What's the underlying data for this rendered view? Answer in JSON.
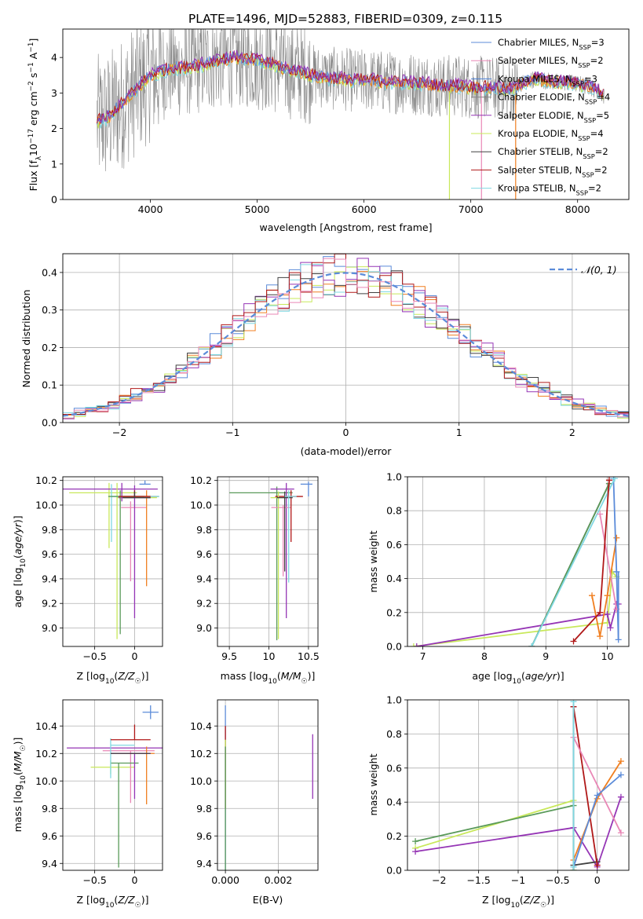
{
  "figure": {
    "title": "PLATE=1496, MJD=52883, FIBERID=0309, z=0.115"
  },
  "colors": {
    "chabrier_miles": "#5b8bd9",
    "salpeter_miles": "#e987b6",
    "kroupa_miles": "#4a7fd4",
    "chabrier_elodie": "#888888",
    "salpeter_elodie": "#9535b5",
    "kroupa_elodie": "#c8e85a",
    "chabrier_stelib": "#404040",
    "salpeter_stelib": "#b01818",
    "kroupa_stelib": "#7fd8e2",
    "orange": "#f07f20",
    "green": "#5a9a5a",
    "gauss": "#5b8bd9",
    "grid": "#b0b0b0"
  },
  "chart_data": [
    {
      "id": "spectrum",
      "type": "line",
      "title": "PLATE=1496, MJD=52883, FIBERID=0309, z=0.115",
      "xlabel": "wavelength [Angstrom, rest frame]",
      "ylabel": "Flux [f_λ 10^-17 erg cm^-2 s^-1 A^-1]",
      "xlim": [
        3180,
        8480
      ],
      "ylim": [
        0,
        4.8
      ],
      "xticks": [
        4000,
        5000,
        6000,
        7000,
        8000
      ],
      "yticks": [
        0,
        1,
        2,
        3,
        4
      ],
      "grid": false,
      "legend_position": "top-right",
      "legend": [
        {
          "label": "Chabrier MILES, N",
          "sub": "SSP",
          "suffix": "=3",
          "color": "#5b8bd9"
        },
        {
          "label": "Salpeter MILES, N",
          "sub": "SSP",
          "suffix": "=2",
          "color": "#e987b6"
        },
        {
          "label": "Kroupa MILES, N",
          "sub": "SSP",
          "suffix": "=3",
          "color": "#4a7fd4"
        },
        {
          "label": "Chabrier ELODIE, N",
          "sub": "SSP",
          "suffix": "=4",
          "color": "#888888"
        },
        {
          "label": "Salpeter ELODIE, N",
          "sub": "SSP",
          "suffix": "=5",
          "color": "#9535b5"
        },
        {
          "label": "Kroupa ELODIE, N",
          "sub": "SSP",
          "suffix": "=4",
          "color": "#c8e85a"
        },
        {
          "label": "Chabrier STELIB, N",
          "sub": "SSP",
          "suffix": "=2",
          "color": "#404040"
        },
        {
          "label": "Salpeter STELIB, N",
          "sub": "SSP",
          "suffix": "=2",
          "color": "#b01818"
        },
        {
          "label": "Kroupa STELIB, N",
          "sub": "SSP",
          "suffix": "=2",
          "color": "#7fd8e2"
        }
      ],
      "continuum_x": [
        3500,
        3600,
        3700,
        3800,
        3900,
        4000,
        4100,
        4200,
        4300,
        4400,
        4500,
        4600,
        4700,
        4800,
        4900,
        5000,
        5100,
        5200,
        5300,
        5400,
        5500,
        5600,
        5700,
        5800,
        5900,
        6000,
        6100,
        6200,
        6300,
        6400,
        6500,
        6600,
        6700,
        6800,
        6900,
        7000,
        7100,
        7200,
        7300,
        7400,
        7500,
        7600,
        7700,
        7800,
        7900,
        8000,
        8100,
        8200,
        8250
      ],
      "continuum_y": [
        2.2,
        2.3,
        2.6,
        2.9,
        3.2,
        3.5,
        3.6,
        3.7,
        3.7,
        3.75,
        3.8,
        3.9,
        3.95,
        4.0,
        3.95,
        3.9,
        3.85,
        3.75,
        3.65,
        3.6,
        3.5,
        3.45,
        3.4,
        3.4,
        3.35,
        3.35,
        3.35,
        3.3,
        3.3,
        3.3,
        3.25,
        3.25,
        3.2,
        3.2,
        3.2,
        3.15,
        3.15,
        3.15,
        3.1,
        3.1,
        3.3,
        3.4,
        3.35,
        3.3,
        3.3,
        3.25,
        3.2,
        3.05,
        2.9
      ]
    },
    {
      "id": "residuals",
      "type": "histogram",
      "xlabel": "(data-model)/error",
      "ylabel": "Normed distribution",
      "xlim": [
        -2.5,
        2.5
      ],
      "ylim": [
        0,
        0.45
      ],
      "xticks": [
        -2,
        -1,
        0,
        1,
        2
      ],
      "yticks": [
        0.0,
        0.1,
        0.2,
        0.3,
        0.4
      ],
      "grid": true,
      "legend_position": "top-right",
      "legend": [
        {
          "label": "𝒩(0, 1)",
          "color": "#5b8bd9",
          "style": "dashed"
        }
      ],
      "bin_width": 0.1
    },
    {
      "id": "age-vs-Z",
      "type": "errorbar",
      "xlabel": "Z [log10(Z/Z☉)]",
      "ylabel": "age  [log10(age/yr)]",
      "xlim": [
        -0.9,
        0.35
      ],
      "ylim": [
        8.85,
        10.23
      ],
      "xticks": [
        -0.5,
        0.0
      ],
      "yticks": [
        9.0,
        9.2,
        9.4,
        9.6,
        9.8,
        10.0,
        10.2
      ],
      "grid": true,
      "points": [
        {
          "x": 0.13,
          "y": 10.17,
          "xerr": [
            0.07,
            0.07
          ],
          "yerr": [
            0.0,
            0.03
          ],
          "color": "#5b8bd9"
        },
        {
          "x": -0.32,
          "y": 10.1,
          "xerr": [
            0.5,
            0.35
          ],
          "yerr": [
            0.45,
            0.08
          ],
          "color": "#c8e85a"
        },
        {
          "x": -0.16,
          "y": 10.13,
          "xerr": [
            0.75,
            0.45
          ],
          "yerr": [
            0.1,
            0.05
          ],
          "color": "#9535b5"
        },
        {
          "x": -0.05,
          "y": 9.98,
          "xerr": [
            0.12,
            0.2
          ],
          "yerr": [
            0.6,
            0.05
          ],
          "color": "#e987b6"
        },
        {
          "x": 0.15,
          "y": 10.07,
          "xerr": [
            0.3,
            0.15
          ],
          "yerr": [
            0.73,
            0.05
          ],
          "color": "#f07f20"
        },
        {
          "x": -0.22,
          "y": 10.06,
          "xerr": [
            0.0,
            0.5
          ],
          "yerr": [
            1.15,
            0.12
          ],
          "color": "#c8e85a"
        },
        {
          "x": 0.0,
          "y": 10.06,
          "xerr": [
            0.2,
            0.2
          ],
          "yerr": [
            0.98,
            0.1
          ],
          "color": "#9535b5"
        },
        {
          "x": -0.29,
          "y": 10.07,
          "xerr": [
            0.0,
            0.6
          ],
          "yerr": [
            0.37,
            0.1
          ],
          "color": "#7fd8e2"
        },
        {
          "x": -0.18,
          "y": 10.07,
          "xerr": [
            0.15,
            0.3
          ],
          "yerr": [
            1.12,
            0.05
          ],
          "color": "#5a9a5a"
        },
        {
          "x": 0.0,
          "y": 10.07,
          "xerr": [
            0.2,
            0.2
          ],
          "yerr": [
            0.0,
            0.05
          ],
          "color": "#b01818"
        },
        {
          "x": 0.0,
          "y": 10.06,
          "xerr": [
            0.15,
            0.2
          ],
          "yerr": [
            0.0,
            0.05
          ],
          "color": "#404040"
        }
      ]
    },
    {
      "id": "age-vs-mass",
      "type": "errorbar",
      "xlabel": "mass [log10(M/M☉)]",
      "ylabel": "",
      "xlim": [
        9.35,
        10.62
      ],
      "ylim": [
        8.85,
        10.23
      ],
      "xticks": [
        9.5,
        10.0,
        10.5
      ],
      "yticks": [
        9.0,
        9.2,
        9.4,
        9.6,
        9.8,
        10.0,
        10.2
      ],
      "grid": true,
      "points": [
        {
          "x": 10.5,
          "y": 10.17,
          "xerr": [
            0.1,
            0.05
          ],
          "yerr": [
            0.1,
            0.02
          ],
          "color": "#5b8bd9"
        },
        {
          "x": 10.1,
          "y": 10.1,
          "xerr": [
            0.6,
            0.2
          ],
          "yerr": [
            1.2,
            0.05
          ],
          "color": "#5a9a5a"
        },
        {
          "x": 10.22,
          "y": 10.13,
          "xerr": [
            0.2,
            0.1
          ],
          "yerr": [
            1.05,
            0.05
          ],
          "color": "#9535b5"
        },
        {
          "x": 10.18,
          "y": 9.98,
          "xerr": [
            0.15,
            0.1
          ],
          "yerr": [
            0.56,
            0.02
          ],
          "color": "#e987b6"
        },
        {
          "x": 10.28,
          "y": 10.07,
          "xerr": [
            0.2,
            0.15
          ],
          "yerr": [
            0.37,
            0.05
          ],
          "color": "#b01818"
        },
        {
          "x": 10.12,
          "y": 10.06,
          "xerr": [
            0.1,
            0.1
          ],
          "yerr": [
            1.15,
            0.05
          ],
          "color": "#c8e85a"
        },
        {
          "x": 10.2,
          "y": 10.06,
          "xerr": [
            0.1,
            0.1
          ],
          "yerr": [
            0.6,
            0.05
          ],
          "color": "#404040"
        },
        {
          "x": 10.25,
          "y": 10.07,
          "xerr": [
            0.05,
            0.1
          ],
          "yerr": [
            0.7,
            0.05
          ],
          "color": "#7fd8e2"
        }
      ]
    },
    {
      "id": "weight-vs-age",
      "type": "line",
      "xlabel": "age  [log10(age/yr)]",
      "ylabel": "mass weight",
      "xlim": [
        6.75,
        10.35
      ],
      "ylim": [
        0,
        1
      ],
      "xticks": [
        7,
        8,
        9,
        10
      ],
      "yticks": [
        0.0,
        0.2,
        0.4,
        0.6,
        0.8,
        1.0
      ],
      "grid": true,
      "series": [
        {
          "color": "#c8e85a",
          "x": [
            6.85,
            10.0,
            10.08,
            10.15
          ],
          "y": [
            0.0,
            0.14,
            0.44,
            0.41
          ]
        },
        {
          "color": "#9535b5",
          "x": [
            6.9,
            10.0,
            10.05,
            10.15,
            10.18
          ],
          "y": [
            0.0,
            0.19,
            0.11,
            0.25,
            0.25
          ]
        },
        {
          "color": "#f07f20",
          "x": [
            9.75,
            9.88,
            10.0,
            10.15
          ],
          "y": [
            0.3,
            0.06,
            0.3,
            0.64
          ]
        },
        {
          "color": "#5b8bd9",
          "x": [
            10.1,
            10.15,
            10.18
          ],
          "y": [
            0.99,
            0.44,
            0.04
          ]
        },
        {
          "color": "#404040",
          "x": [
            8.77,
            10.03
          ],
          "y": [
            0.0,
            0.96
          ]
        },
        {
          "color": "#5a9a5a",
          "x": [
            8.77,
            10.03
          ],
          "y": [
            0.0,
            0.96
          ]
        },
        {
          "color": "#7fd8e2",
          "x": [
            8.77,
            10.12
          ],
          "y": [
            0.0,
            0.99
          ]
        },
        {
          "color": "#e987b6",
          "x": [
            9.88,
            10.15
          ],
          "y": [
            0.78,
            0.22
          ]
        },
        {
          "color": "#b01818",
          "x": [
            9.45,
            9.88,
            10.03
          ],
          "y": [
            0.03,
            0.2,
            0.98
          ]
        }
      ]
    },
    {
      "id": "mass-vs-Z",
      "type": "errorbar",
      "xlabel": "Z [log10(Z/Z☉)]",
      "ylabel": "mass [log10(M/M☉)]",
      "xlim": [
        -0.9,
        0.35
      ],
      "ylim": [
        9.35,
        10.59
      ],
      "xticks": [
        -0.5,
        0.0
      ],
      "yticks": [
        9.4,
        9.6,
        9.8,
        10.0,
        10.2,
        10.4
      ],
      "grid": true,
      "points": [
        {
          "x": 0.2,
          "y": 10.5,
          "xerr": [
            0.1,
            0.1
          ],
          "yerr": [
            0.05,
            0.05
          ],
          "color": "#5b8bd9"
        },
        {
          "x": -0.3,
          "y": 10.1,
          "xerr": [
            0.25,
            0.3
          ],
          "yerr": [
            0.05,
            0.05
          ],
          "color": "#c8e85a"
        },
        {
          "x": -0.2,
          "y": 10.24,
          "xerr": [
            0.65,
            0.6
          ],
          "yerr": [
            0.0,
            0.0
          ],
          "color": "#9535b5"
        },
        {
          "x": -0.05,
          "y": 10.22,
          "xerr": [
            0.35,
            0.3
          ],
          "yerr": [
            0.38,
            0.0
          ],
          "color": "#e987b6"
        },
        {
          "x": 0.15,
          "y": 10.2,
          "xerr": [
            0.45,
            0.1
          ],
          "yerr": [
            0.37,
            0.05
          ],
          "color": "#f07f20"
        },
        {
          "x": -0.2,
          "y": 10.13,
          "xerr": [
            0.1,
            0.25
          ],
          "yerr": [
            0.76,
            0.0
          ],
          "color": "#5a9a5a"
        },
        {
          "x": 0.0,
          "y": 10.2,
          "xerr": [
            0.3,
            0.2
          ],
          "yerr": [
            0.33,
            0.0
          ],
          "color": "#9535b5"
        },
        {
          "x": -0.3,
          "y": 10.26,
          "xerr": [
            0.0,
            0.3
          ],
          "yerr": [
            0.24,
            0.05
          ],
          "color": "#7fd8e2"
        },
        {
          "x": 0.0,
          "y": 10.3,
          "xerr": [
            0.3,
            0.2
          ],
          "yerr": [
            0.0,
            0.11
          ],
          "color": "#b01818"
        },
        {
          "x": 0.0,
          "y": 10.2,
          "xerr": [
            0.3,
            0.2
          ],
          "yerr": [
            0.0,
            0.0
          ],
          "color": "#404040"
        }
      ]
    },
    {
      "id": "mass-vs-ebv",
      "type": "errorbar",
      "xlabel": "E(B-V)",
      "ylabel": "",
      "xlim": [
        -0.0003,
        0.0035
      ],
      "ylim": [
        9.35,
        10.59
      ],
      "xticks": [
        0.0,
        0.002
      ],
      "xtick_labels": [
        "0.000",
        "0.002"
      ],
      "yticks": [
        9.4,
        9.6,
        9.8,
        10.0,
        10.2,
        10.4
      ],
      "grid": true,
      "points": [
        {
          "x": 0.0,
          "y": 10.0,
          "xerr": [
            0,
            0
          ],
          "yerr": [
            0.65,
            0.55
          ],
          "color": "#5b8bd9"
        },
        {
          "x": 0.0,
          "y": 10.1,
          "xerr": [
            0,
            0
          ],
          "yerr": [
            0.3,
            0.3
          ],
          "color": "#b01818"
        },
        {
          "x": 0.0,
          "y": 9.9,
          "xerr": [
            0,
            0
          ],
          "yerr": [
            0.1,
            0.4
          ],
          "color": "#c8e85a"
        },
        {
          "x": 0.0,
          "y": 9.7,
          "xerr": [
            0,
            0
          ],
          "yerr": [
            0.35,
            0.55
          ],
          "color": "#5a9a5a"
        },
        {
          "x": 0.0033,
          "y": 10.1,
          "xerr": [
            0,
            0
          ],
          "yerr": [
            0.23,
            0.24
          ],
          "color": "#9535b5"
        }
      ]
    },
    {
      "id": "weight-vs-Z",
      "type": "line",
      "xlabel": "Z [log10(Z/Z☉)]",
      "ylabel": "mass weight",
      "xlim": [
        -2.4,
        0.4
      ],
      "ylim": [
        0,
        1
      ],
      "xticks": [
        -2.0,
        -1.5,
        -1.0,
        -0.5,
        0.0
      ],
      "yticks": [
        0.0,
        0.2,
        0.4,
        0.6,
        0.8,
        1.0
      ],
      "grid": true,
      "series": [
        {
          "color": "#c8e85a",
          "x": [
            -2.3,
            -0.3,
            -0.3
          ],
          "y": [
            0.13,
            0.41,
            0.0
          ]
        },
        {
          "color": "#5a9a5a",
          "x": [
            -2.3,
            -0.3,
            -0.3
          ],
          "y": [
            0.17,
            0.38,
            0.0
          ]
        },
        {
          "color": "#9535b5",
          "x": [
            -2.3,
            -0.3,
            0.0,
            0.3
          ],
          "y": [
            0.11,
            0.25,
            0.02,
            0.43
          ]
        },
        {
          "color": "#404040",
          "x": [
            -0.3,
            -0.3,
            0.0
          ],
          "y": [
            0.96,
            0.03,
            0.05
          ]
        },
        {
          "color": "#b01818",
          "x": [
            -0.3,
            0.0
          ],
          "y": [
            0.96,
            0.03
          ]
        },
        {
          "color": "#e987b6",
          "x": [
            -0.3,
            0.3
          ],
          "y": [
            0.78,
            0.22
          ]
        },
        {
          "color": "#f07f20",
          "x": [
            -0.3,
            0.0,
            0.3
          ],
          "y": [
            0.06,
            0.42,
            0.64
          ]
        },
        {
          "color": "#5b8bd9",
          "x": [
            -0.3,
            0.0,
            0.3
          ],
          "y": [
            0.02,
            0.44,
            0.56
          ]
        },
        {
          "color": "#7fd8e2",
          "x": [
            -0.3,
            -0.3
          ],
          "y": [
            0.99,
            0.02
          ]
        }
      ]
    }
  ]
}
